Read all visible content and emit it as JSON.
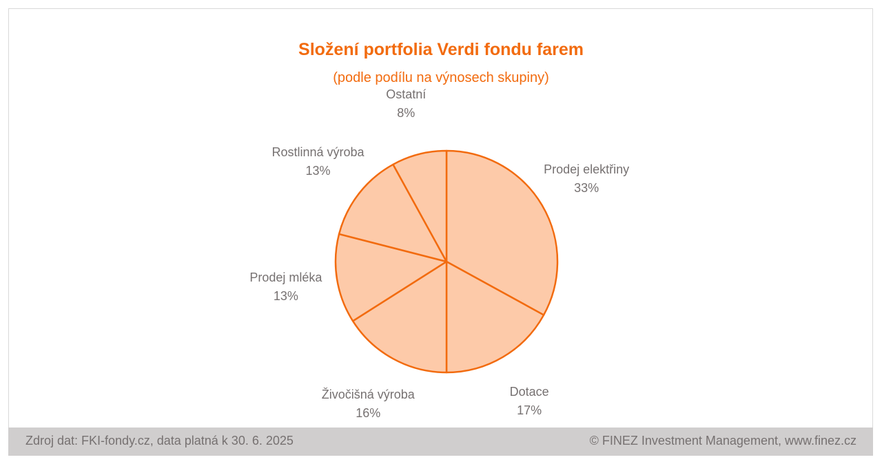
{
  "chart_data": {
    "type": "pie",
    "title": "Složení portfolia Verdi fondu farem",
    "subtitle": "(podle podílu na výnosech skupiny)",
    "slices": [
      {
        "label": "Prodej elektřiny",
        "value": 33,
        "value_label": "33%"
      },
      {
        "label": "Dotace",
        "value": 17,
        "value_label": "17%"
      },
      {
        "label": "Živočišná výroba",
        "value": 16,
        "value_label": "16%"
      },
      {
        "label": "Prodej mléka",
        "value": 13,
        "value_label": "13%"
      },
      {
        "label": "Rostlinná výroba",
        "value": 13,
        "value_label": "13%"
      },
      {
        "label": "Ostatní",
        "value": 8,
        "value_label": "8%"
      }
    ],
    "colors": {
      "slice_fill": "#fdcaa9",
      "slice_stroke": "#f26b0f",
      "title": "#f26b0f",
      "labels": "#767171"
    }
  },
  "footer": {
    "source": "Zdroj dat: FKI-fondy.cz, data platná k 30. 6. 2025",
    "copyright": "© FINEZ Investment Management, www.finez.cz"
  }
}
